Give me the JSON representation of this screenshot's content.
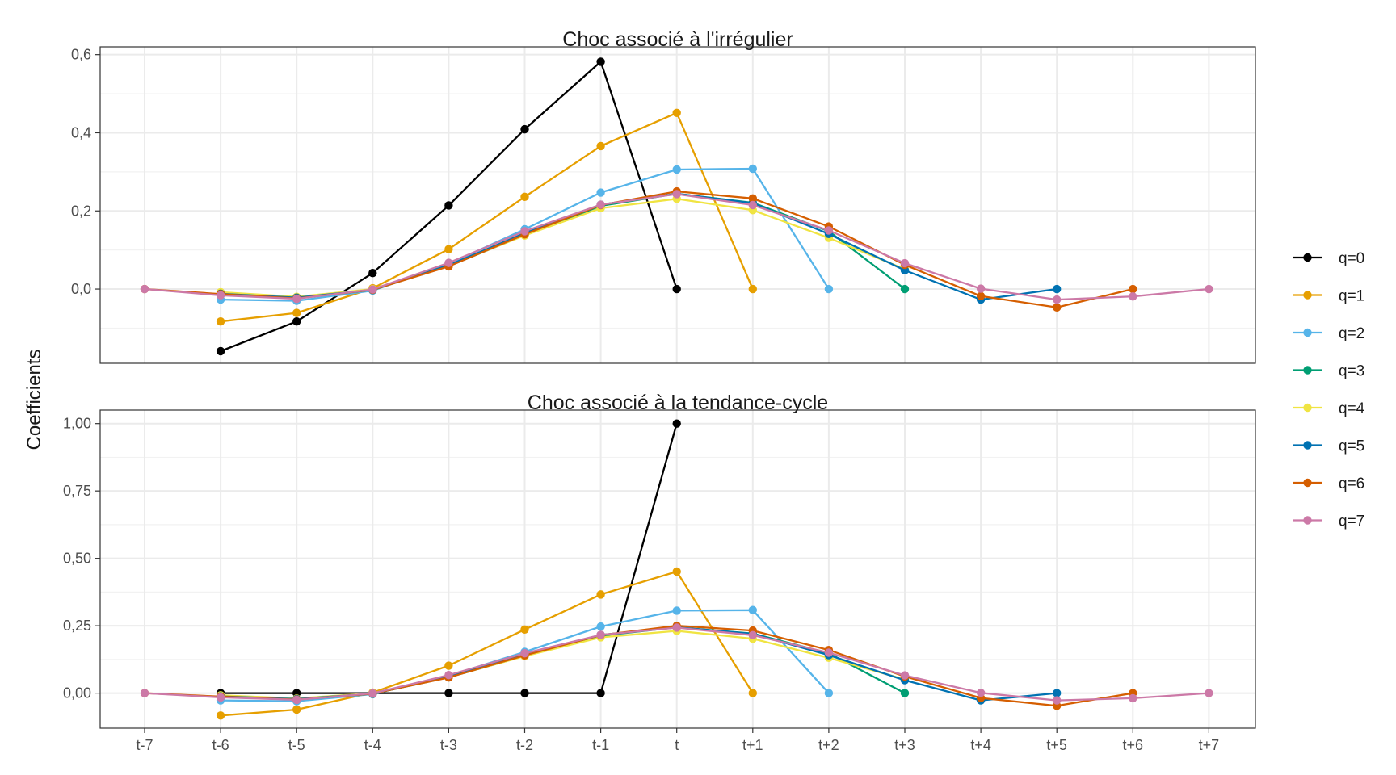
{
  "chart_data": [
    {
      "type": "line",
      "title": "Choc associé à l'irrégulier",
      "ylabel": "Coefficients",
      "xlabel": "",
      "categories": [
        "t-7",
        "t-6",
        "t-5",
        "t-4",
        "t-3",
        "t-2",
        "t-1",
        "t",
        "t+1",
        "t+2",
        "t+3",
        "t+4",
        "t+5",
        "t+6",
        "t+7"
      ],
      "ylim": [
        -0.19,
        0.62
      ],
      "yticks": [
        0.0,
        0.2,
        0.4,
        0.6
      ],
      "ytick_labels": [
        "0,0",
        "0,2",
        "0,4",
        "0,6"
      ],
      "grid": true,
      "series": [
        {
          "name": "q=0",
          "color": "#000000",
          "values": [
            null,
            -0.159,
            -0.083,
            0.041,
            0.214,
            0.409,
            0.582,
            0.0,
            null,
            null,
            null,
            null,
            null,
            null,
            null
          ]
        },
        {
          "name": "q=1",
          "color": "#E69F00",
          "values": [
            null,
            -0.083,
            -0.061,
            0.002,
            0.102,
            0.236,
            0.366,
            0.451,
            0.0,
            null,
            null,
            null,
            null,
            null,
            null
          ]
        },
        {
          "name": "q=2",
          "color": "#56B4E9",
          "values": [
            null,
            -0.027,
            -0.03,
            -0.004,
            0.064,
            0.153,
            0.247,
            0.306,
            0.308,
            0.0,
            null,
            null,
            null,
            null,
            null
          ]
        },
        {
          "name": "q=3",
          "color": "#009E73",
          "values": [
            null,
            -0.012,
            -0.023,
            -0.002,
            0.059,
            0.138,
            0.213,
            0.244,
            0.221,
            0.148,
            0.0,
            null,
            null,
            null,
            null
          ]
        },
        {
          "name": "q=4",
          "color": "#F0E442",
          "values": [
            null,
            -0.008,
            -0.02,
            0.0,
            0.06,
            0.137,
            0.207,
            0.231,
            0.202,
            0.131,
            0.051,
            null,
            null,
            null,
            null
          ]
        },
        {
          "name": "q=5",
          "color": "#0072B2",
          "values": [
            null,
            -0.012,
            -0.022,
            -0.002,
            0.061,
            0.143,
            0.216,
            0.244,
            0.22,
            0.141,
            0.048,
            -0.027,
            0.0,
            null,
            null
          ]
        },
        {
          "name": "q=6",
          "color": "#D55E00",
          "values": [
            0.0,
            -0.013,
            -0.024,
            -0.002,
            0.058,
            0.14,
            0.215,
            0.25,
            0.232,
            0.16,
            0.062,
            -0.018,
            -0.047,
            0.0,
            null
          ]
        },
        {
          "name": "q=7",
          "color": "#CC79A7",
          "values": [
            0.0,
            -0.016,
            -0.025,
            -0.001,
            0.067,
            0.148,
            0.216,
            0.243,
            0.215,
            0.15,
            0.066,
            0.001,
            -0.027,
            -0.019,
            0.0
          ]
        }
      ]
    },
    {
      "type": "line",
      "title": "Choc associé à la tendance-cycle",
      "ylabel": "Coefficients",
      "xlabel": "",
      "categories": [
        "t-7",
        "t-6",
        "t-5",
        "t-4",
        "t-3",
        "t-2",
        "t-1",
        "t",
        "t+1",
        "t+2",
        "t+3",
        "t+4",
        "t+5",
        "t+6",
        "t+7"
      ],
      "ylim": [
        -0.13,
        1.05
      ],
      "yticks": [
        0.0,
        0.25,
        0.5,
        0.75,
        1.0
      ],
      "ytick_labels": [
        "0,00",
        "0,25",
        "0,50",
        "0,75",
        "1,00"
      ],
      "grid": true,
      "series": [
        {
          "name": "q=0",
          "color": "#000000",
          "values": [
            null,
            0.0,
            0.0,
            0.0,
            0.0,
            0.0,
            0.0,
            1.0,
            null,
            null,
            null,
            null,
            null,
            null,
            null
          ]
        },
        {
          "name": "q=1",
          "color": "#E69F00",
          "values": [
            null,
            -0.083,
            -0.061,
            0.002,
            0.102,
            0.236,
            0.366,
            0.451,
            0.0,
            null,
            null,
            null,
            null,
            null,
            null
          ]
        },
        {
          "name": "q=2",
          "color": "#56B4E9",
          "values": [
            null,
            -0.027,
            -0.03,
            -0.004,
            0.064,
            0.153,
            0.247,
            0.306,
            0.308,
            0.0,
            null,
            null,
            null,
            null,
            null
          ]
        },
        {
          "name": "q=3",
          "color": "#009E73",
          "values": [
            null,
            -0.012,
            -0.023,
            -0.002,
            0.059,
            0.138,
            0.213,
            0.244,
            0.221,
            0.148,
            0.0,
            null,
            null,
            null,
            null
          ]
        },
        {
          "name": "q=4",
          "color": "#F0E442",
          "values": [
            null,
            -0.008,
            -0.02,
            0.0,
            0.06,
            0.137,
            0.207,
            0.231,
            0.202,
            0.131,
            0.051,
            null,
            null,
            null,
            null
          ]
        },
        {
          "name": "q=5",
          "color": "#0072B2",
          "values": [
            null,
            -0.012,
            -0.022,
            -0.002,
            0.061,
            0.143,
            0.216,
            0.244,
            0.22,
            0.141,
            0.048,
            -0.027,
            0.0,
            null,
            null
          ]
        },
        {
          "name": "q=6",
          "color": "#D55E00",
          "values": [
            0.0,
            -0.013,
            -0.024,
            -0.002,
            0.058,
            0.14,
            0.215,
            0.25,
            0.232,
            0.16,
            0.062,
            -0.018,
            -0.047,
            0.0,
            null
          ]
        },
        {
          "name": "q=7",
          "color": "#CC79A7",
          "values": [
            0.0,
            -0.016,
            -0.025,
            -0.001,
            0.067,
            0.148,
            0.216,
            0.243,
            0.215,
            0.15,
            0.066,
            0.001,
            -0.027,
            -0.019,
            0.0
          ]
        }
      ]
    }
  ],
  "legend": {
    "placement": "right",
    "entries": [
      {
        "label": "q=0",
        "color": "#000000"
      },
      {
        "label": "q=1",
        "color": "#E69F00"
      },
      {
        "label": "q=2",
        "color": "#56B4E9"
      },
      {
        "label": "q=3",
        "color": "#009E73"
      },
      {
        "label": "q=4",
        "color": "#F0E442"
      },
      {
        "label": "q=5",
        "color": "#0072B2"
      },
      {
        "label": "q=6",
        "color": "#D55E00"
      },
      {
        "label": "q=7",
        "color": "#CC79A7"
      }
    ]
  }
}
